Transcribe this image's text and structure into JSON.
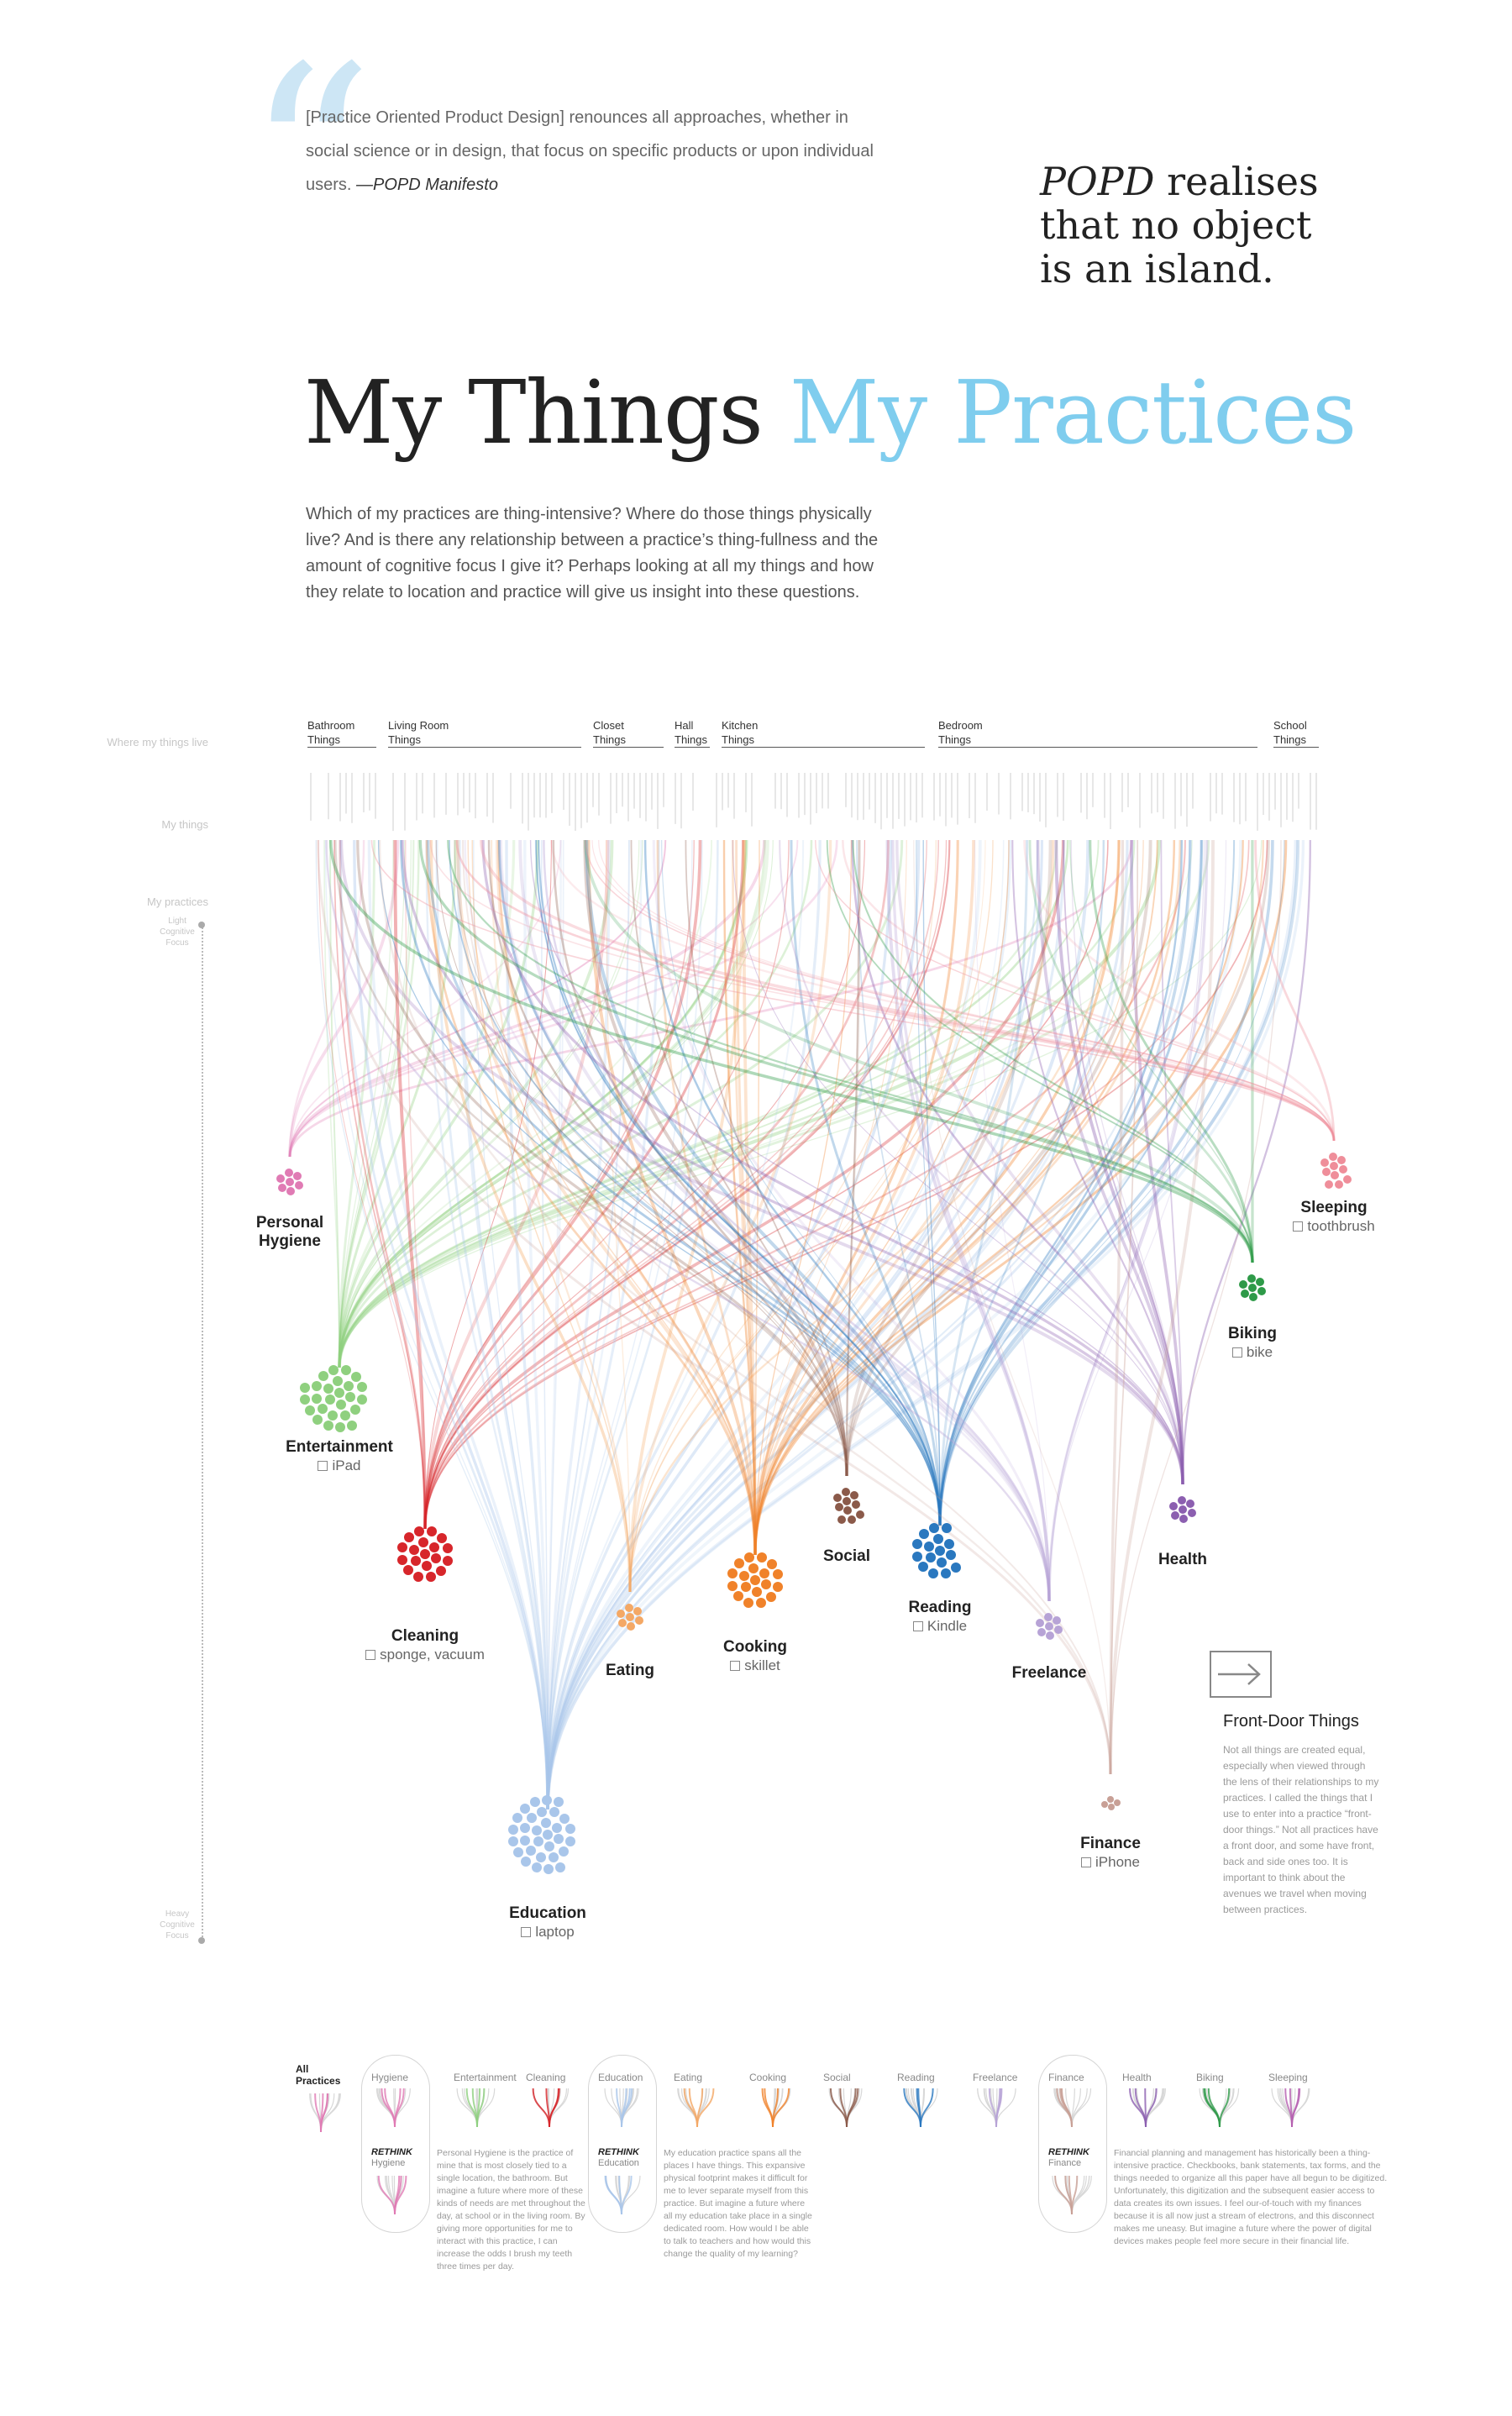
{
  "quote": {
    "mark": "“",
    "text": "[Practice Oriented Product Design] renounces all approaches, whether in social science or in design, that focus on specific products or upon individual users.",
    "attribution": "—POPD Manifesto"
  },
  "tagline": {
    "emph": "POPD",
    "line1": "realises",
    "line2": "that no object",
    "line3": "is an island."
  },
  "title": {
    "part1": "My Things",
    "part2": "My Practices"
  },
  "intro": "Which of my practices are thing-intensive? Where do those things physically live? And is there any relationship between a practice’s thing-fullness and the amount of cognitive focus I give it? Perhaps looking at all my things and how they relate to location and practice will give us insight into these questions.",
  "axis": {
    "where_label": "Where my things live",
    "things_label": "My things",
    "practices_label": "My practices",
    "light_focus": "Light Cognitive Focus",
    "heavy_focus": "Heavy Cognitive Focus"
  },
  "locations": [
    {
      "line1": "Bathroom",
      "line2": "Things"
    },
    {
      "line1": "Living Room",
      "line2": "Things"
    },
    {
      "line1": "Closet",
      "line2": "Things"
    },
    {
      "line1": "Hall",
      "line2": "Things"
    },
    {
      "line1": "Kitchen",
      "line2": "Things"
    },
    {
      "line1": "Bedroom",
      "line2": "Things"
    },
    {
      "line1": "School",
      "line2": "Things"
    }
  ],
  "practices": [
    {
      "name": "Personal Hygiene",
      "line1": "Personal",
      "line2": "Hygiene",
      "front": "",
      "color": "#e07bb4"
    },
    {
      "name": "Entertainment",
      "line1": "Entertainment",
      "line2": "",
      "front": "iPad",
      "color": "#8fd07f"
    },
    {
      "name": "Cleaning",
      "line1": "Cleaning",
      "line2": "",
      "front": "sponge, vacuum",
      "color": "#d7262b"
    },
    {
      "name": "Education",
      "line1": "Education",
      "line2": "",
      "front": "laptop",
      "color": "#a9c6ea"
    },
    {
      "name": "Eating",
      "line1": "Eating",
      "line2": "",
      "front": "",
      "color": "#f4a865"
    },
    {
      "name": "Cooking",
      "line1": "Cooking",
      "line2": "",
      "front": "skillet",
      "color": "#f0822a"
    },
    {
      "name": "Social",
      "line1": "Social",
      "line2": "",
      "front": "",
      "color": "#8b5a4a"
    },
    {
      "name": "Reading",
      "line1": "Reading",
      "line2": "",
      "front": "Kindle",
      "color": "#2a78bf"
    },
    {
      "name": "Freelance",
      "line1": "Freelance",
      "line2": "",
      "front": "",
      "color": "#b7a3d6"
    },
    {
      "name": "Health",
      "line1": "Health",
      "line2": "",
      "front": "",
      "color": "#8c5fb0"
    },
    {
      "name": "Finance",
      "line1": "Finance",
      "line2": "",
      "front": "iPhone",
      "color": "#c8a096"
    },
    {
      "name": "Biking",
      "line1": "Biking",
      "line2": "",
      "front": "bike",
      "color": "#2e9a48"
    },
    {
      "name": "Sleeping",
      "line1": "Sleeping",
      "line2": "",
      "front": "toothbrush",
      "color": "#ef8e9a"
    }
  ],
  "front_door": {
    "title": "Front-Door Things",
    "text": "Not all things are created equal, especially when viewed through the lens of their relationships to my practices. I called the things that I use to enter into a practice “front-door things.” Not all practices have a front door, and some have front, back and side ones too. It is important to think about the avenues we travel when moving between practices."
  },
  "legend": {
    "all": "All Practices",
    "items": [
      "Hygiene",
      "Entertainment",
      "Cleaning",
      "Education",
      "Eating",
      "Cooking",
      "Social",
      "Reading",
      "Freelance",
      "Finance",
      "Health",
      "Biking",
      "Sleeping"
    ],
    "rethink_word": "RETHINK",
    "rethink_items": [
      "Hygiene",
      "Education",
      "Finance"
    ],
    "hygiene_text": "Personal Hygiene is the practice of mine that is most closely tied to a single location, the bathroom. But imagine a future where more of these kinds of needs are met throughout the day, at school or in the living room. By giving more opportunities for me to interact with this practice, I can increase the odds I brush my teeth three times per day.",
    "education_text": "My education practice spans all the places I have things. This expansive physical footprint makes it difficult for me to lever separate myself from this practice. But imagine a future where all my education take place in a single dedicated room. How would I be able to talk to teachers and how would this change the quality of my learning?",
    "finance_text": "Financial planning and management has historically been a thing-intensive practice. Checkbooks, bank statements, tax forms, and the things needed to organize all this paper have all begun to be digitized. Unfortunately, this digitization and the subsequent easier access to data creates its own issues. I feel our-of-touch with my finances because it is all now just a stream of electrons, and this disconnect makes me uneasy. But imagine a future where the power of digital devices makes people feel more secure in their financial life."
  }
}
